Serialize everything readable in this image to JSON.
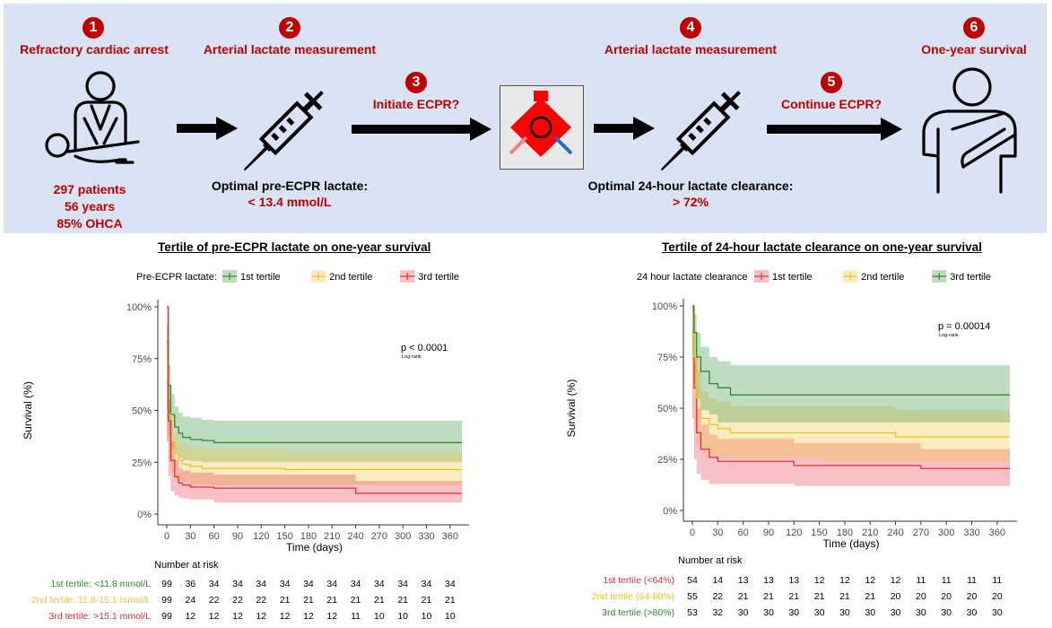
{
  "steps": [
    {
      "number": "1",
      "title": "Refractory cardiac arrest",
      "lines": [
        "297 patients",
        "56 years",
        "85% OHCA"
      ]
    },
    {
      "number": "2",
      "title": "Arterial lactate measurement",
      "note": "Optimal pre-ECPR lactate:",
      "value": "< 13.4 mmol/L"
    },
    {
      "number": "3",
      "title": "Initiate ECPR?"
    },
    {
      "number": "4",
      "title": "Arterial lactate measurement",
      "note": "Optimal 24-hour lactate clearance:",
      "value": "> 72%"
    },
    {
      "number": "5",
      "title": "Continue ECPR?"
    },
    {
      "number": "6",
      "title": "One-year survival"
    }
  ],
  "icons": [
    "cpr-icon",
    "syringe-icon",
    "ecmo-device-icon",
    "syringe-icon",
    "patient-sling-icon"
  ],
  "colors": {
    "panel": "#dae3f3",
    "accent": "#c00000",
    "green": "#2e8b2e",
    "yellow": "#f2c12e",
    "red": "#e0303a"
  },
  "chart_data": [
    {
      "type": "line",
      "title": "Tertile of pre-ECPR lactate on one-year survival",
      "legend_title": "Pre-ECPR lactate:",
      "legend_placement": "top",
      "xlabel": "Time (days)",
      "ylabel": "Survival (%)",
      "xlim": [
        0,
        375
      ],
      "ylim": [
        0,
        1
      ],
      "x_ticks": [
        0,
        30,
        60,
        90,
        120,
        150,
        180,
        210,
        240,
        270,
        300,
        330,
        360
      ],
      "y_ticks": [
        "0%",
        "25%",
        "50%",
        "75%",
        "100%"
      ],
      "pvalue": "p < 0.0001",
      "pvalue_sub": "Log-rank",
      "risk_table_title": "Number at risk",
      "series": [
        {
          "name": "1st tertile",
          "color": "#2e8b2e",
          "risk_label": "1st tertile: <11.8 mmol/L",
          "x": [
            0,
            2,
            5,
            10,
            15,
            20,
            30,
            45,
            60,
            375
          ],
          "y": [
            0.83,
            0.62,
            0.48,
            0.42,
            0.39,
            0.37,
            0.36,
            0.355,
            0.345,
            0.345
          ],
          "lower": [
            0.72,
            0.5,
            0.37,
            0.32,
            0.29,
            0.27,
            0.26,
            0.255,
            0.25,
            0.25
          ],
          "upper": [
            0.92,
            0.72,
            0.58,
            0.52,
            0.49,
            0.47,
            0.465,
            0.455,
            0.45,
            0.45
          ],
          "at_risk": [
            99,
            36,
            34,
            34,
            34,
            34,
            34,
            34,
            34,
            34,
            34,
            34,
            34
          ]
        },
        {
          "name": "2nd tertile",
          "color": "#f2c12e",
          "risk_label": "2nd tertile: 11.8-15.1 mmol/L",
          "x": [
            0,
            2,
            5,
            10,
            15,
            20,
            30,
            45,
            150,
            375
          ],
          "y": [
            0.74,
            0.48,
            0.34,
            0.29,
            0.26,
            0.24,
            0.23,
            0.22,
            0.215,
            0.215
          ],
          "lower": [
            0.63,
            0.38,
            0.25,
            0.2,
            0.18,
            0.16,
            0.155,
            0.145,
            0.14,
            0.14
          ],
          "upper": [
            0.85,
            0.58,
            0.44,
            0.38,
            0.35,
            0.33,
            0.32,
            0.31,
            0.3,
            0.3
          ],
          "at_risk": [
            99,
            24,
            22,
            22,
            22,
            21,
            21,
            21,
            21,
            21,
            21,
            21,
            21
          ]
        },
        {
          "name": "3rd tertile",
          "color": "#e0303a",
          "risk_label": "3rd tertile: >15.1 mmol/L",
          "x": [
            0,
            2,
            5,
            10,
            15,
            20,
            30,
            60,
            240,
            375
          ],
          "y": [
            1.0,
            0.45,
            0.26,
            0.18,
            0.15,
            0.14,
            0.13,
            0.125,
            0.1,
            0.1
          ],
          "lower": [
            0.93,
            0.35,
            0.18,
            0.11,
            0.09,
            0.08,
            0.075,
            0.07,
            0.055,
            0.055
          ],
          "upper": [
            1.0,
            0.55,
            0.35,
            0.26,
            0.22,
            0.21,
            0.2,
            0.19,
            0.16,
            0.16
          ],
          "at_risk": [
            99,
            12,
            12,
            12,
            12,
            12,
            12,
            12,
            11,
            10,
            10,
            10,
            10
          ]
        }
      ]
    },
    {
      "type": "line",
      "title": "Tertile of 24-hour lactate clearance on one-year survival",
      "legend_title": "24 hour lactate clearance",
      "legend_placement": "top",
      "xlabel": "Time (days)",
      "ylabel": "Survival (%)",
      "xlim": [
        0,
        375
      ],
      "ylim": [
        0,
        1
      ],
      "x_ticks": [
        0,
        30,
        60,
        90,
        120,
        150,
        180,
        210,
        240,
        270,
        300,
        330,
        360
      ],
      "y_ticks": [
        "0%",
        "25%",
        "50%",
        "75%",
        "100%"
      ],
      "pvalue": "p = 0.00014",
      "pvalue_sub": "Log-rank",
      "risk_table_title": "Number at risk",
      "series": [
        {
          "name": "1st tertile",
          "color": "#e0303a",
          "risk_label": "1st tertile (<64%)",
          "x": [
            0,
            2,
            5,
            10,
            20,
            30,
            60,
            120,
            270,
            375
          ],
          "y": [
            1.0,
            0.6,
            0.38,
            0.3,
            0.26,
            0.24,
            0.24,
            0.22,
            0.205,
            0.205
          ],
          "lower": [
            0.9,
            0.45,
            0.25,
            0.18,
            0.15,
            0.13,
            0.13,
            0.13,
            0.12,
            0.12
          ],
          "upper": [
            1.0,
            0.72,
            0.5,
            0.42,
            0.37,
            0.35,
            0.35,
            0.33,
            0.3,
            0.3
          ],
          "at_risk": [
            54,
            14,
            13,
            13,
            13,
            12,
            12,
            12,
            12,
            11,
            11,
            11,
            11
          ]
        },
        {
          "name": "2nd tertile",
          "color": "#f2c12e",
          "risk_label": "2nd tertile (64-80%)",
          "x": [
            0,
            2,
            5,
            10,
            20,
            30,
            45,
            150,
            240,
            375
          ],
          "y": [
            0.95,
            0.75,
            0.55,
            0.45,
            0.42,
            0.4,
            0.38,
            0.38,
            0.36,
            0.36
          ],
          "lower": [
            0.85,
            0.62,
            0.42,
            0.32,
            0.29,
            0.27,
            0.26,
            0.26,
            0.24,
            0.24
          ],
          "upper": [
            1.0,
            0.87,
            0.68,
            0.58,
            0.55,
            0.53,
            0.51,
            0.51,
            0.49,
            0.49
          ],
          "at_risk": [
            55,
            22,
            21,
            21,
            21,
            21,
            21,
            21,
            20,
            20,
            20,
            20,
            20
          ]
        },
        {
          "name": "3rd tertile",
          "color": "#2e8b2e",
          "risk_label": "3rd tertile (>80%)",
          "x": [
            0,
            2,
            5,
            10,
            20,
            30,
            45,
            375
          ],
          "y": [
            1.0,
            0.87,
            0.75,
            0.68,
            0.62,
            0.6,
            0.565,
            0.565
          ],
          "lower": [
            0.95,
            0.76,
            0.62,
            0.55,
            0.49,
            0.47,
            0.43,
            0.43
          ],
          "upper": [
            1.0,
            0.96,
            0.87,
            0.8,
            0.75,
            0.73,
            0.71,
            0.71
          ],
          "at_risk": [
            53,
            32,
            30,
            30,
            30,
            30,
            30,
            30,
            30,
            30,
            30,
            30,
            30
          ]
        }
      ]
    }
  ]
}
